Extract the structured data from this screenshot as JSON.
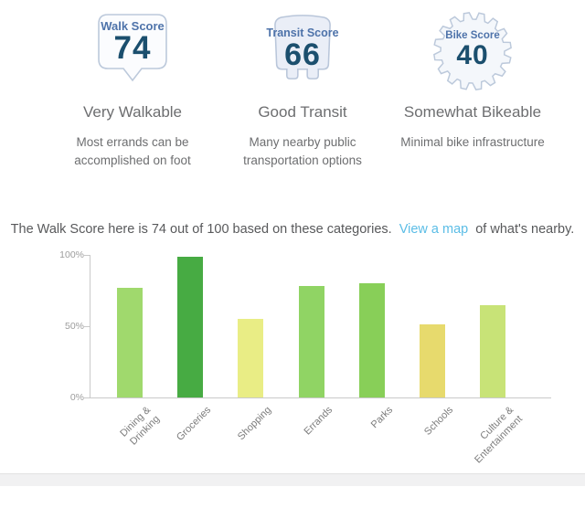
{
  "scores": [
    {
      "badge_label": "Walk Score",
      "value": "74",
      "title": "Very Walkable",
      "description": "Most errands can be\naccomplished on foot"
    },
    {
      "badge_label": "Transit Score",
      "value": "66",
      "title": "Good Transit",
      "description": "Many nearby public\ntransportation options"
    },
    {
      "badge_label": "Bike Score",
      "value": "40",
      "title": "Somewhat Bikeable",
      "description": "Minimal bike infrastructure"
    }
  ],
  "summary": {
    "text_before_link": "The Walk Score here is 74 out of 100 based on these categories.",
    "link_text": "View a map",
    "text_after_link": "of what's nearby."
  },
  "chart_data": {
    "type": "bar",
    "categories": [
      "Dining & Drinking",
      "Groceries",
      "Shopping",
      "Errands",
      "Parks",
      "Schools",
      "Culture & Entertainment"
    ],
    "tick_labels": [
      "Dining &\nDrinking",
      "Groceries",
      "Shopping",
      "Errands",
      "Parks",
      "Schools",
      "Culture &\nEntertainment"
    ],
    "values": [
      77,
      99,
      55,
      78,
      80,
      51,
      65
    ],
    "bar_colors": [
      "#a0d96d",
      "#47ab43",
      "#e9ed85",
      "#90d464",
      "#88cf58",
      "#e7da6d",
      "#c8e377"
    ],
    "title": "",
    "xlabel": "",
    "ylabel": "",
    "y_ticks": [
      "100%",
      "50%",
      "0%"
    ],
    "ylim": [
      0,
      100
    ],
    "grid": false,
    "legend": "none"
  },
  "colors": {
    "score_label_blue": "#4e73aa",
    "score_value_navy": "#1b4f6e",
    "badge_border": "#bcc9db",
    "bubble_fill": "#fbfcfe",
    "bus_fill": "#eaeef7",
    "gear_fill": "#f4f7fb",
    "body_text": "#6d6e70",
    "link_blue": "#5bbde6",
    "axis_gray": "#c9c9c9"
  }
}
